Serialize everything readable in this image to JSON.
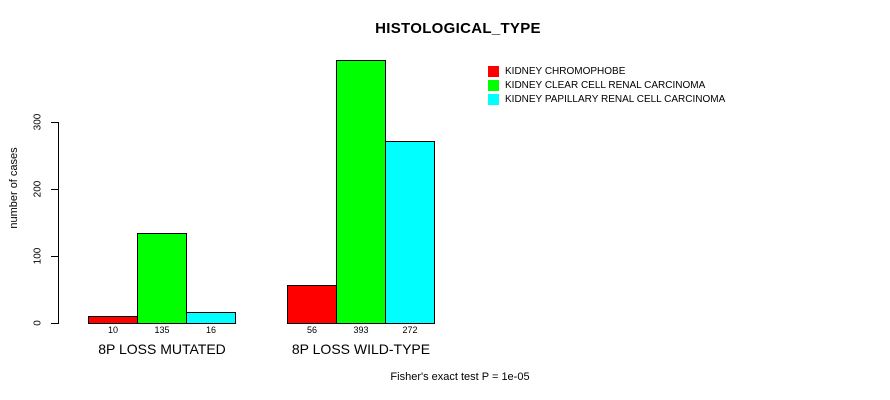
{
  "chart_data": {
    "type": "bar",
    "title": "HISTOLOGICAL_TYPE",
    "ylabel": "number of cases",
    "xlabel": "",
    "categories": [
      "8P LOSS MUTATED",
      "8P LOSS WILD-TYPE"
    ],
    "series": [
      {
        "name": "KIDNEY CHROMOPHOBE",
        "color": "#ff0000",
        "values": [
          10,
          56
        ]
      },
      {
        "name": "KIDNEY CLEAR CELL RENAL CARCINOMA",
        "color": "#00ff00",
        "values": [
          135,
          393
        ]
      },
      {
        "name": "KIDNEY PAPILLARY RENAL CELL CARCINOMA",
        "color": "#00ffff",
        "values": [
          16,
          272
        ]
      }
    ],
    "yticks": [
      0,
      100,
      200,
      300
    ],
    "ylim": [
      0,
      400
    ],
    "grid": false,
    "legend_position": "top-right",
    "bar_value_labels_shown": true,
    "annotation": "Fisher's exact test P = 1e-05"
  },
  "colors": {
    "background": "#ffffff",
    "axis": "#000000",
    "text": "#000000"
  }
}
